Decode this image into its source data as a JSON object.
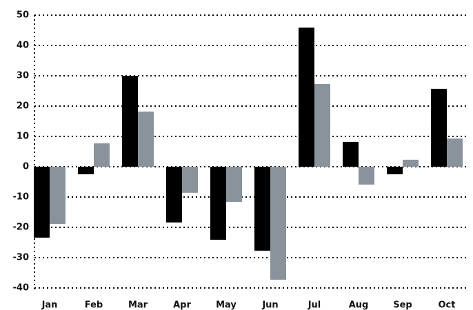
{
  "chart_data": {
    "type": "bar",
    "categories": [
      "Jan",
      "Feb",
      "Mar",
      "Apr",
      "May",
      "Jun",
      "Jul",
      "Aug",
      "Sep",
      "Oct"
    ],
    "series": [
      {
        "color": "#000000",
        "values": [
          -23.4,
          -2.5,
          30,
          -18.4,
          -24.1,
          -27.7,
          45.9,
          8.2,
          -2.5,
          25.7
        ]
      },
      {
        "color": "#8a939c",
        "values": [
          -18.9,
          7.7,
          18.2,
          -8.6,
          -11.6,
          -37.3,
          27.3,
          -5.9,
          2.3,
          9.3
        ]
      }
    ],
    "ylim": [
      -40,
      50
    ],
    "yticks": [
      -40,
      -30,
      -20,
      -10,
      0,
      10,
      20,
      30,
      40,
      50
    ],
    "grid": true
  }
}
